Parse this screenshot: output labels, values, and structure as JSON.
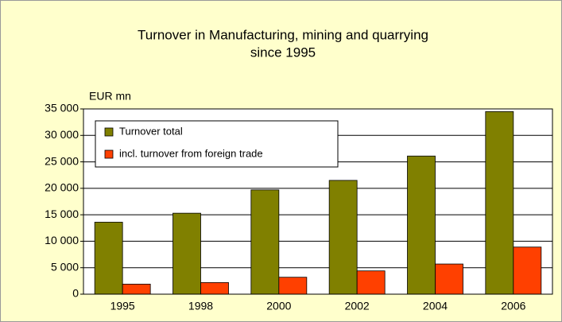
{
  "chart_data": {
    "type": "bar",
    "title": [
      "Turnover in Manufacturing, mining and quarrying",
      "since 1995"
    ],
    "y_label": "EUR mn",
    "categories": [
      "1995",
      "1998",
      "2000",
      "2002",
      "2004",
      "2006"
    ],
    "series": [
      {
        "name": "Turnover total",
        "color": "#808000",
        "values": [
          13600,
          15300,
          19700,
          21500,
          26100,
          34500
        ]
      },
      {
        "name": "incl. turnover from foreign trade",
        "color": "#ff4000",
        "values": [
          1900,
          2200,
          3200,
          4400,
          5700,
          8900
        ]
      }
    ],
    "ylim": [
      0,
      35000
    ],
    "yticks": [
      0,
      {
        "value": 5000,
        "label": "5 000"
      },
      {
        "value": 10000,
        "label": "10 000"
      },
      {
        "value": 15000,
        "label": "15 000"
      },
      {
        "value": 20000,
        "label": "20 000"
      },
      {
        "value": 25000,
        "label": "25 000"
      },
      {
        "value": 30000,
        "label": "30 000"
      },
      {
        "value": 35000,
        "label": "35 000"
      }
    ],
    "grid": true,
    "legend": "upper left"
  }
}
